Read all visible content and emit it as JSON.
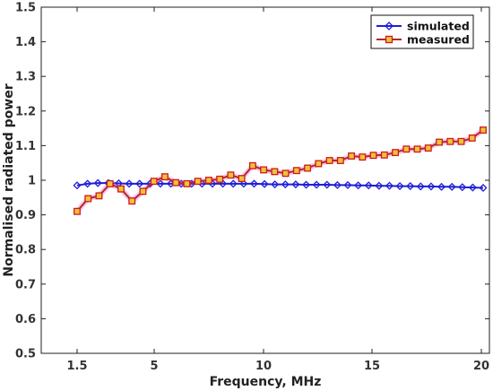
{
  "chart_data": {
    "type": "line",
    "title": "",
    "xlabel": "Frequency, MHz",
    "ylabel": "Normalised radiated power",
    "x_tick_labels": [
      "1.5",
      "5",
      "10",
      "15",
      "20"
    ],
    "y_tick_labels": [
      "0.5",
      "0.6",
      "0.7",
      "0.8",
      "0.9",
      "1",
      "1.1",
      "1.2",
      "1.3",
      "1.4",
      "1.5"
    ],
    "ylim": [
      0.5,
      1.5
    ],
    "grid": false,
    "legend_position": "top-right",
    "series": [
      {
        "name": "simulated",
        "color": "#1f1fd6",
        "marker": "diamond",
        "values": [
          0.985,
          0.99,
          0.992,
          0.992,
          0.991,
          0.99,
          0.99,
          0.99,
          0.99,
          0.99,
          0.99,
          0.99,
          0.99,
          0.99,
          0.99,
          0.99,
          0.99,
          0.99,
          0.989,
          0.988,
          0.988,
          0.988,
          0.987,
          0.987,
          0.987,
          0.986,
          0.986,
          0.985,
          0.985,
          0.984,
          0.984,
          0.983,
          0.983,
          0.982,
          0.982,
          0.981,
          0.981,
          0.98,
          0.979,
          0.978
        ]
      },
      {
        "name": "measured",
        "color": "#b22b1c",
        "marker": "square",
        "values": [
          0.91,
          0.947,
          0.955,
          0.99,
          0.975,
          0.94,
          0.968,
          0.997,
          1.01,
          0.993,
          0.99,
          0.997,
          1.0,
          1.003,
          1.015,
          1.005,
          1.042,
          1.03,
          1.025,
          1.02,
          1.028,
          1.035,
          1.048,
          1.057,
          1.057,
          1.07,
          1.067,
          1.072,
          1.073,
          1.08,
          1.09,
          1.09,
          1.093,
          1.11,
          1.112,
          1.112,
          1.122,
          1.145
        ]
      }
    ]
  }
}
